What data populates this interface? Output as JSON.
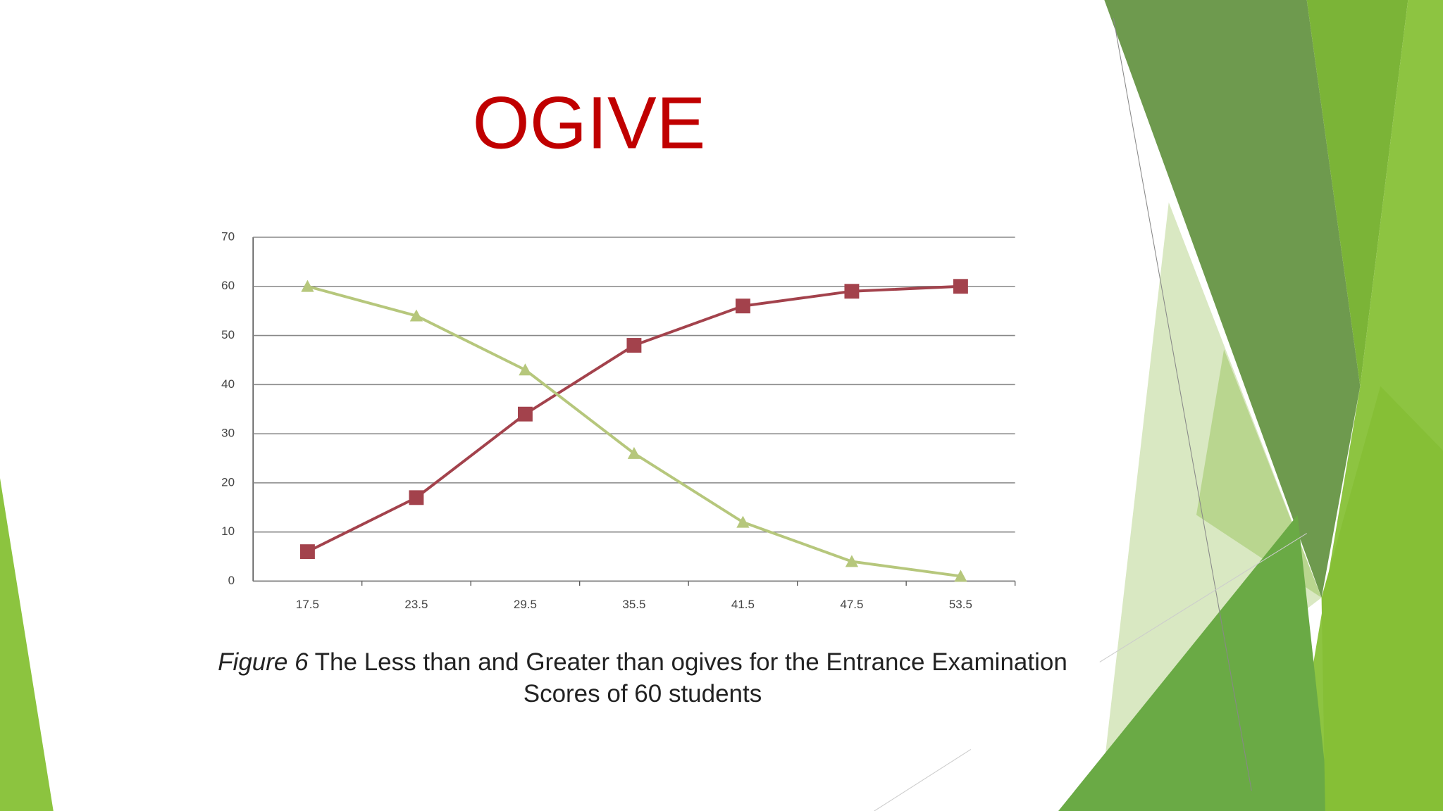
{
  "title": "OGIVE",
  "chart_data": {
    "type": "line",
    "categories": [
      "17.5",
      "23.5",
      "29.5",
      "35.5",
      "41.5",
      "47.5",
      "53.5"
    ],
    "series": [
      {
        "color": "#a3424c",
        "marker": "square",
        "values": [
          6,
          17,
          34,
          48,
          56,
          59,
          60
        ]
      },
      {
        "color": "#b6c77c",
        "marker": "triangle",
        "values": [
          60,
          54,
          43,
          26,
          12,
          4,
          1
        ]
      }
    ],
    "ylim": [
      0,
      70
    ],
    "yticks": [
      0,
      10,
      20,
      30,
      40,
      50,
      60,
      70
    ],
    "grid": true
  },
  "caption_label": "Figure 6",
  "caption": "The Less than and Greater than ogives for the Entrance Examination Scores of 60 students"
}
